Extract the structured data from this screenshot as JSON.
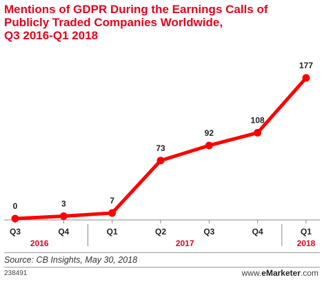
{
  "chart_data": {
    "type": "line",
    "title_lines": [
      "Mentions of GDPR During the Earnings Calls of",
      "Publicly Traded Companies Worldwide,",
      "Q3 2016-Q1 2018"
    ],
    "categories": [
      "Q3",
      "Q4",
      "Q1",
      "Q2",
      "Q3",
      "Q4",
      "Q1"
    ],
    "years": [
      {
        "label": "2016",
        "start": 0,
        "end": 1
      },
      {
        "label": "2017",
        "start": 2,
        "end": 5
      },
      {
        "label": "2018",
        "start": 6,
        "end": 6
      }
    ],
    "series": [
      {
        "values": [
          0,
          3,
          7,
          73,
          92,
          108,
          177
        ]
      }
    ],
    "data_labels": [
      "0",
      "3",
      "7",
      "73",
      "92",
      "108",
      "177"
    ],
    "ylim": [
      0,
      177
    ],
    "grid": false,
    "line_color": "#ff0000",
    "year_color": "#e8001c"
  },
  "footer": {
    "source": "Source: CB Insights, May 30, 2018",
    "id": "238491",
    "brand_prefix": "www.",
    "brand_main": "eMarketer",
    "brand_suffix": ".com"
  }
}
